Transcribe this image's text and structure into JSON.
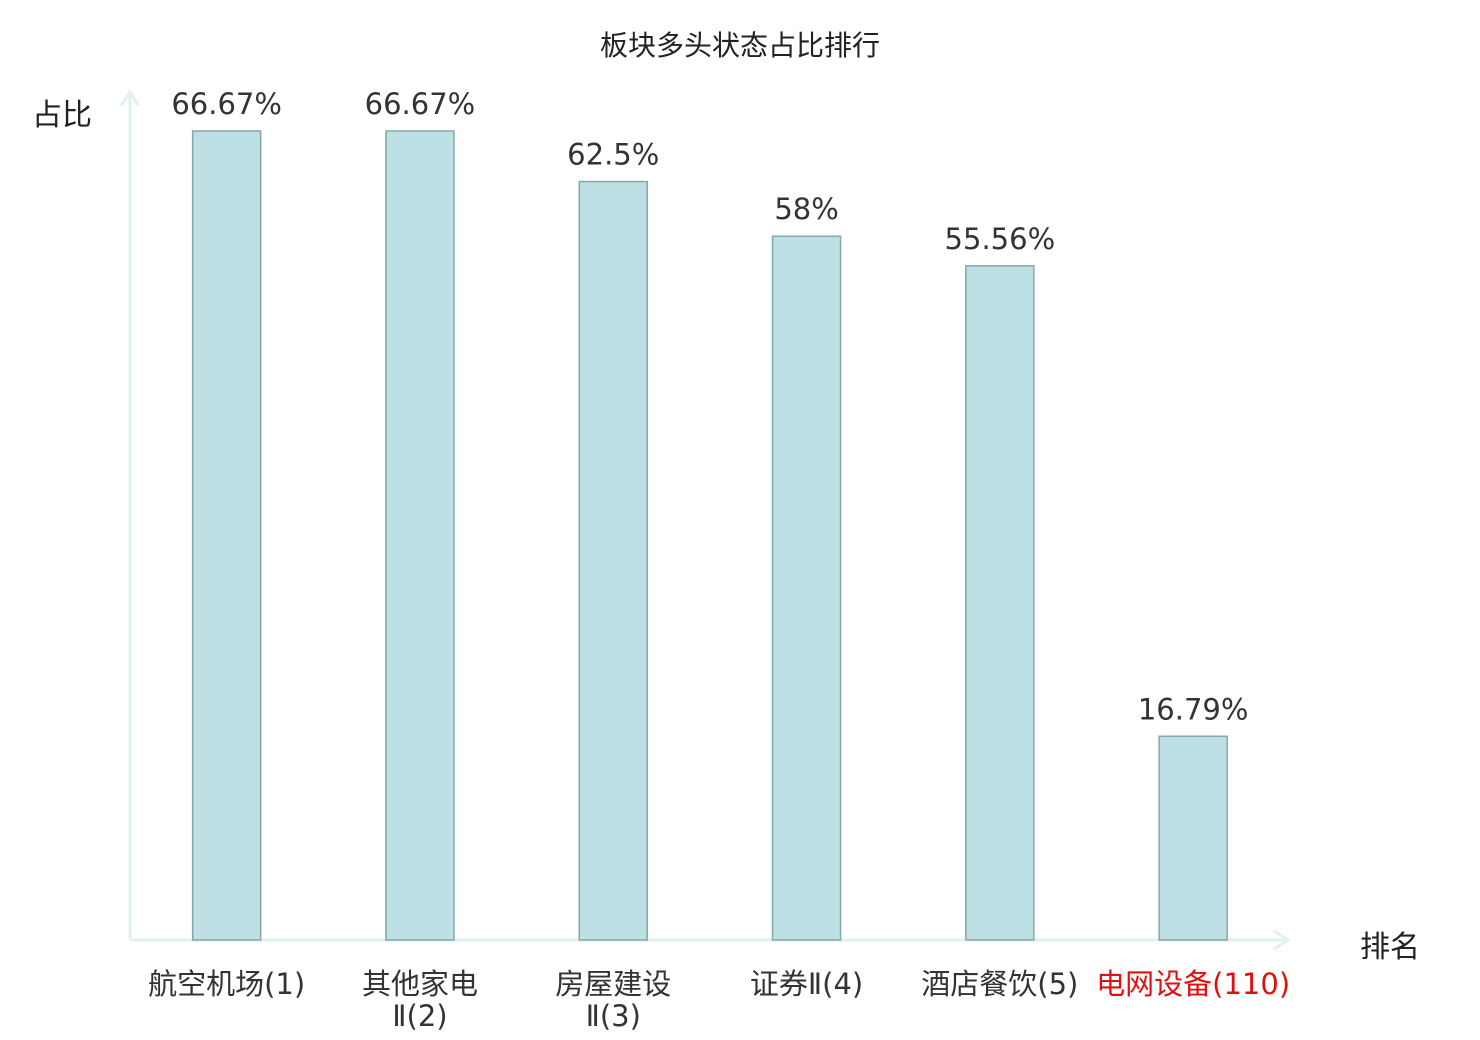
{
  "chart_data": {
    "type": "bar",
    "title": "板块多头状态占比排行",
    "xlabel": "排名",
    "ylabel": "占比",
    "ylim": [
      0,
      70
    ],
    "grid": false,
    "categories": [
      {
        "name": "航空机场",
        "rank": "(1)",
        "highlight": false
      },
      {
        "name": "其他家电",
        "suffix": "Ⅱ",
        "rank": "(2)",
        "highlight": false
      },
      {
        "name": "房屋建设",
        "suffix": "Ⅱ",
        "rank": "(3)",
        "highlight": false
      },
      {
        "name": "证券",
        "suffix": "Ⅱ",
        "rank": "(4)",
        "highlight": false
      },
      {
        "name": "酒店餐饮",
        "rank": "(5)",
        "highlight": false
      },
      {
        "name": "电网设备",
        "rank": "(110)",
        "highlight": true
      }
    ],
    "values": [
      66.67,
      66.67,
      62.5,
      58,
      55.56,
      16.79
    ],
    "value_labels": [
      "66.67%",
      "66.67%",
      "62.5%",
      "58%",
      "55.56%",
      "16.79%"
    ]
  },
  "colors": {
    "bar_fill": "#bce0e3",
    "bar_stroke": "#86a7a9",
    "axis": "#dff2ee",
    "label_text": "#333333",
    "highlight_text": "#e01010"
  }
}
